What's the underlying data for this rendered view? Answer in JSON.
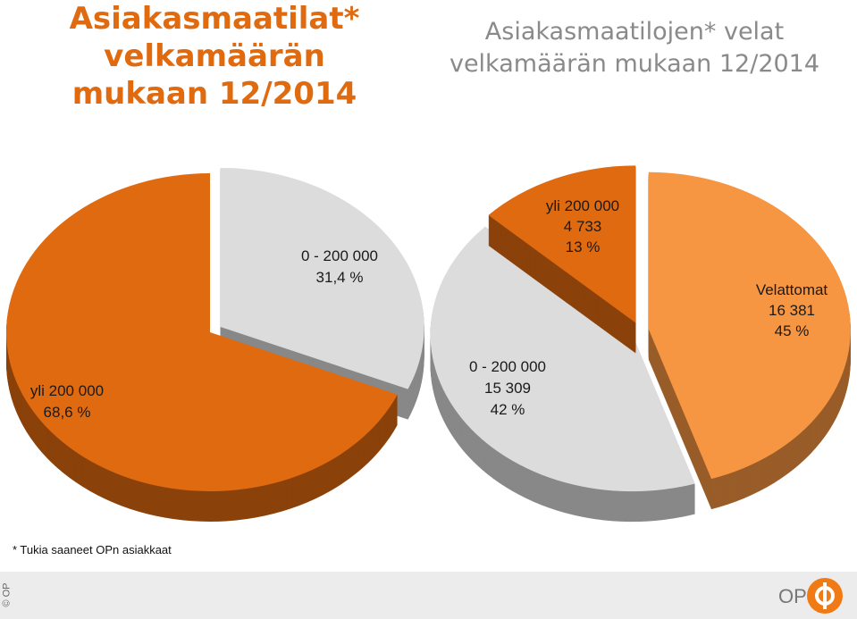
{
  "title_left": "Asiakasmaatilat* velkamäärän mukaan  12/2014",
  "title_right": "Asiakasmaatilojen* velat velkamäärän mukaan 12/2014",
  "footnote": "* Tukia saaneet OPn asiakkaat",
  "copyright": "© OP",
  "brand": "OP",
  "colors": {
    "orange": "#e06a10",
    "light_orange": "#f69642",
    "gray": "#dcdcdc",
    "title_gray": "#8a8a8a"
  },
  "chart_data": [
    {
      "type": "pie",
      "title": "Asiakasmaatilat* velkamäärän mukaan  12/2014",
      "slices": [
        {
          "name": "0 - 200 000",
          "value": 31.4,
          "value_label": "31,4 %",
          "color": "#dcdcdc"
        },
        {
          "name": "yli 200 000",
          "value": 68.6,
          "value_label": "68,6 %",
          "color": "#e06a10"
        }
      ]
    },
    {
      "type": "pie",
      "title": "Asiakasmaatilojen* velat velkamäärän mukaan 12/2014",
      "slices": [
        {
          "name": "Velattomat",
          "value": 16381,
          "count_label": "16 381",
          "percent_label": "45 %",
          "color": "#f69642"
        },
        {
          "name": "0 - 200 000",
          "value": 15309,
          "count_label": "15 309",
          "percent_label": "42 %",
          "color": "#dcdcdc"
        },
        {
          "name": "yli 200 000",
          "value": 4733,
          "count_label": "4 733",
          "percent_label": "13 %",
          "color": "#e06a10"
        }
      ]
    }
  ]
}
